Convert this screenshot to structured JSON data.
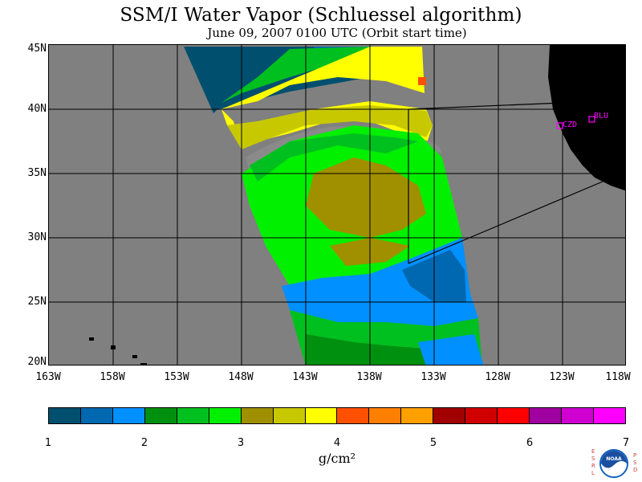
{
  "title": "SSM/I Water Vapor (Schluessel algorithm)",
  "subtitle": "June 09, 2007  0100 UTC  (Orbit start time)",
  "map": {
    "lat_labels": [
      "45N",
      "40N",
      "35N",
      "30N",
      "25N",
      "20N"
    ],
    "lon_labels": [
      "163W",
      "158W",
      "153W",
      "148W",
      "143W",
      "138W",
      "133W",
      "128W",
      "123W",
      "118W"
    ],
    "stations": [
      {
        "code": "CZD"
      },
      {
        "code": "BLU"
      }
    ]
  },
  "colorbar": {
    "ticks": [
      "1",
      "2",
      "3",
      "4",
      "5",
      "6",
      "7"
    ],
    "unit": "g/cm²",
    "colors": [
      "#004f6e",
      "#0068b0",
      "#0090ff",
      "#009010",
      "#00c020",
      "#00f000",
      "#a09000",
      "#c8c800",
      "#ffff00",
      "#ff5000",
      "#ff8000",
      "#ffa000",
      "#a00000",
      "#d00000",
      "#ff0000",
      "#a000a0",
      "#d000d0",
      "#ff00ff"
    ]
  },
  "logo": {
    "left_letters": "ESRL",
    "right_letters": "PSD",
    "text": "NOAA"
  }
}
